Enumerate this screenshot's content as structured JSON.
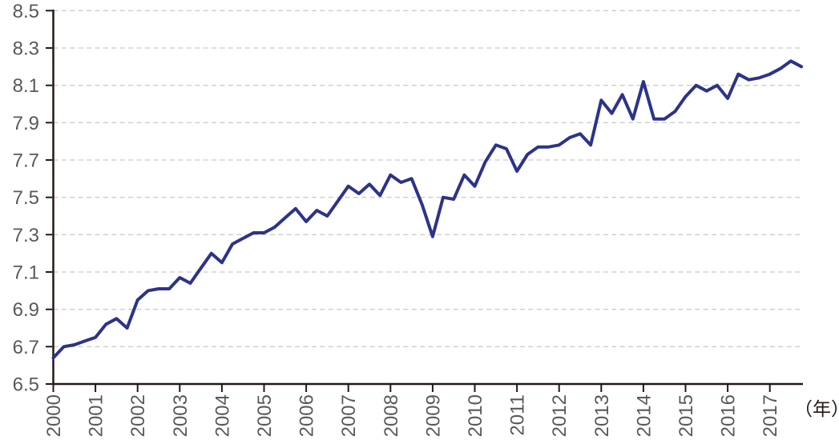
{
  "chart_data": {
    "type": "line",
    "title": "",
    "unit_label": "（年）",
    "xlabel": "",
    "ylabel": "",
    "ylim": [
      6.5,
      8.5
    ],
    "ytick_step": 0.2,
    "ytick_labels": [
      "6.5",
      "6.7",
      "6.9",
      "7.1",
      "7.3",
      "7.5",
      "7.7",
      "7.9",
      "8.1",
      "8.3",
      "8.5"
    ],
    "grid": "horizontal-dashed",
    "legend": "none",
    "frequency": "quarterly",
    "years": [
      "2000",
      "2001",
      "2002",
      "2003",
      "2004",
      "2005",
      "2006",
      "2007",
      "2008",
      "2009",
      "2010",
      "2011",
      "2012",
      "2013",
      "2014",
      "2015",
      "2016",
      "2017"
    ],
    "values": [
      6.64,
      6.7,
      6.71,
      6.73,
      6.75,
      6.82,
      6.85,
      6.8,
      6.95,
      7.0,
      7.01,
      7.01,
      7.07,
      7.04,
      7.12,
      7.2,
      7.15,
      7.25,
      7.28,
      7.31,
      7.31,
      7.34,
      7.39,
      7.44,
      7.37,
      7.43,
      7.4,
      7.48,
      7.56,
      7.52,
      7.57,
      7.51,
      7.62,
      7.58,
      7.6,
      7.46,
      7.29,
      7.5,
      7.49,
      7.62,
      7.56,
      7.69,
      7.78,
      7.76,
      7.64,
      7.73,
      7.77,
      7.77,
      7.78,
      7.82,
      7.84,
      7.78,
      8.02,
      7.95,
      8.05,
      7.92,
      8.12,
      7.92,
      7.92,
      7.96,
      8.04,
      8.1,
      8.07,
      8.1,
      8.03,
      8.16,
      8.13,
      8.14,
      8.16,
      8.19,
      8.23,
      8.2
    ],
    "line_color": "#2d3389",
    "axis_color": "#231815",
    "label_color": "#595959",
    "grid_color": "#cbcbcb",
    "background_color": "#ffffff"
  }
}
